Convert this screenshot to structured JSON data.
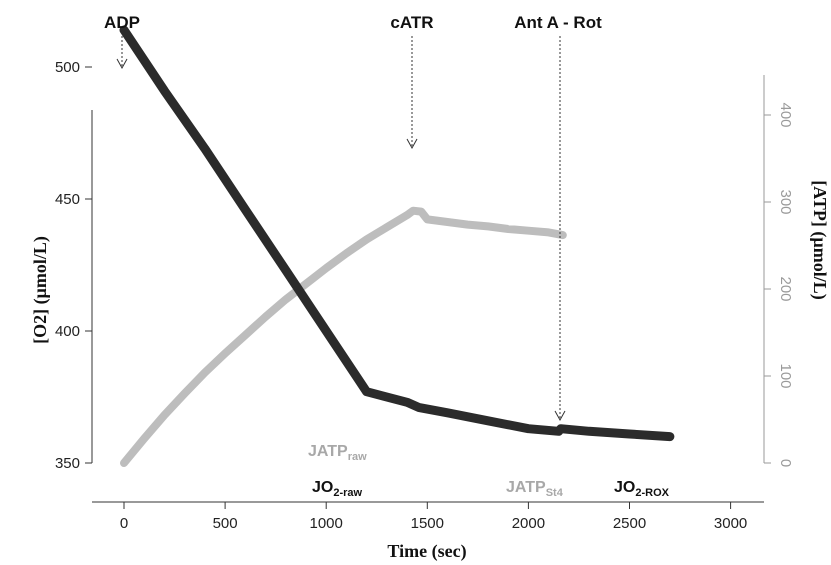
{
  "chart_data": {
    "type": "line",
    "xlabel": "Time (sec)",
    "ylabel_left": "[O2] (µmol/L)",
    "ylabel_right": "[ATP] (µmol/L)",
    "xlim": [
      0,
      3000
    ],
    "ylim_left": [
      350,
      520
    ],
    "ylim_right": [
      0,
      440
    ],
    "x_ticks": [
      0,
      500,
      1000,
      1500,
      2000,
      2500,
      3000
    ],
    "y_left_ticks": [
      350,
      400,
      450,
      500
    ],
    "y_right_ticks": [
      0,
      100,
      200,
      300,
      400
    ],
    "colors": {
      "o2": "#2b2b2b",
      "atp": "#bdbdbd",
      "right_axis": "#9a9a9a"
    },
    "series": [
      {
        "axis": "left",
        "x": [
          0,
          200,
          400,
          600,
          800,
          1000,
          1200,
          1400,
          1460,
          1600,
          1800,
          2000,
          2150,
          2160,
          2300,
          2500,
          2700
        ],
        "y": [
          514,
          491,
          469,
          446,
          423,
          400,
          377,
          373,
          371,
          369,
          366,
          363,
          362,
          363,
          362,
          361,
          360
        ]
      },
      {
        "axis": "right",
        "x": [
          0,
          100,
          200,
          300,
          400,
          500,
          600,
          700,
          800,
          900,
          1000,
          1100,
          1200,
          1300,
          1400,
          1430,
          1470,
          1500,
          1600,
          1700,
          1800,
          1900,
          2000,
          2100,
          2170
        ],
        "y": [
          0,
          28,
          55,
          80,
          104,
          126,
          147,
          168,
          188,
          206,
          224,
          241,
          257,
          271,
          285,
          290,
          289,
          280,
          277,
          274,
          272,
          269,
          267,
          265,
          262
        ]
      }
    ],
    "annotations": [
      {
        "text": "ADP",
        "x": 0
      },
      {
        "text": "cATR",
        "x": 1430
      },
      {
        "text": "Ant A - Rot",
        "x": 2160
      }
    ],
    "labels": {
      "jatp_raw": {
        "main": "JATP",
        "sub": "raw"
      },
      "jo2_raw": {
        "main": "JO",
        "sub": "2-raw"
      },
      "jatp_st4": {
        "main": "JATP",
        "sub": "St4"
      },
      "jo2_rox": {
        "main": "JO",
        "sub": "2-ROX"
      }
    }
  }
}
